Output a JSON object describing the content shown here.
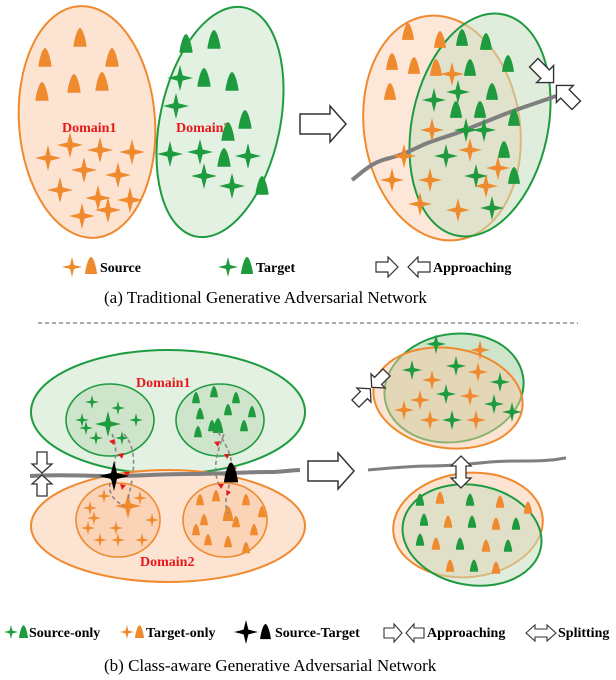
{
  "panel_a": {
    "domain1_label": "Domain1",
    "domain2_label": "Domain2",
    "legend_source": "Source",
    "legend_target": "Target",
    "legend_approaching": "Approaching",
    "caption": "(a) Traditional Generative Adversarial Network"
  },
  "panel_b": {
    "domain1_label": "Domain1",
    "domain2_label": "Domain2",
    "legend_source_only": "Source-only",
    "legend_target_only": "Target-only",
    "legend_source_target": "Source-Target",
    "legend_approaching": "Approaching",
    "legend_splitting": "Splitting",
    "caption": "(b) Class-aware Generative Adversarial Network"
  },
  "colors": {
    "source": "#ef8a2e",
    "target": "#1f9b3f",
    "source_fill": "#fde3d2",
    "target_fill": "#e3f1e2",
    "boundary": "#7f7f7f",
    "label_red": "#e8191b"
  },
  "icons": [
    "star-icon",
    "triangle-icon",
    "approaching-arrow-icon",
    "splitting-arrow-icon",
    "right-arrow-icon"
  ]
}
